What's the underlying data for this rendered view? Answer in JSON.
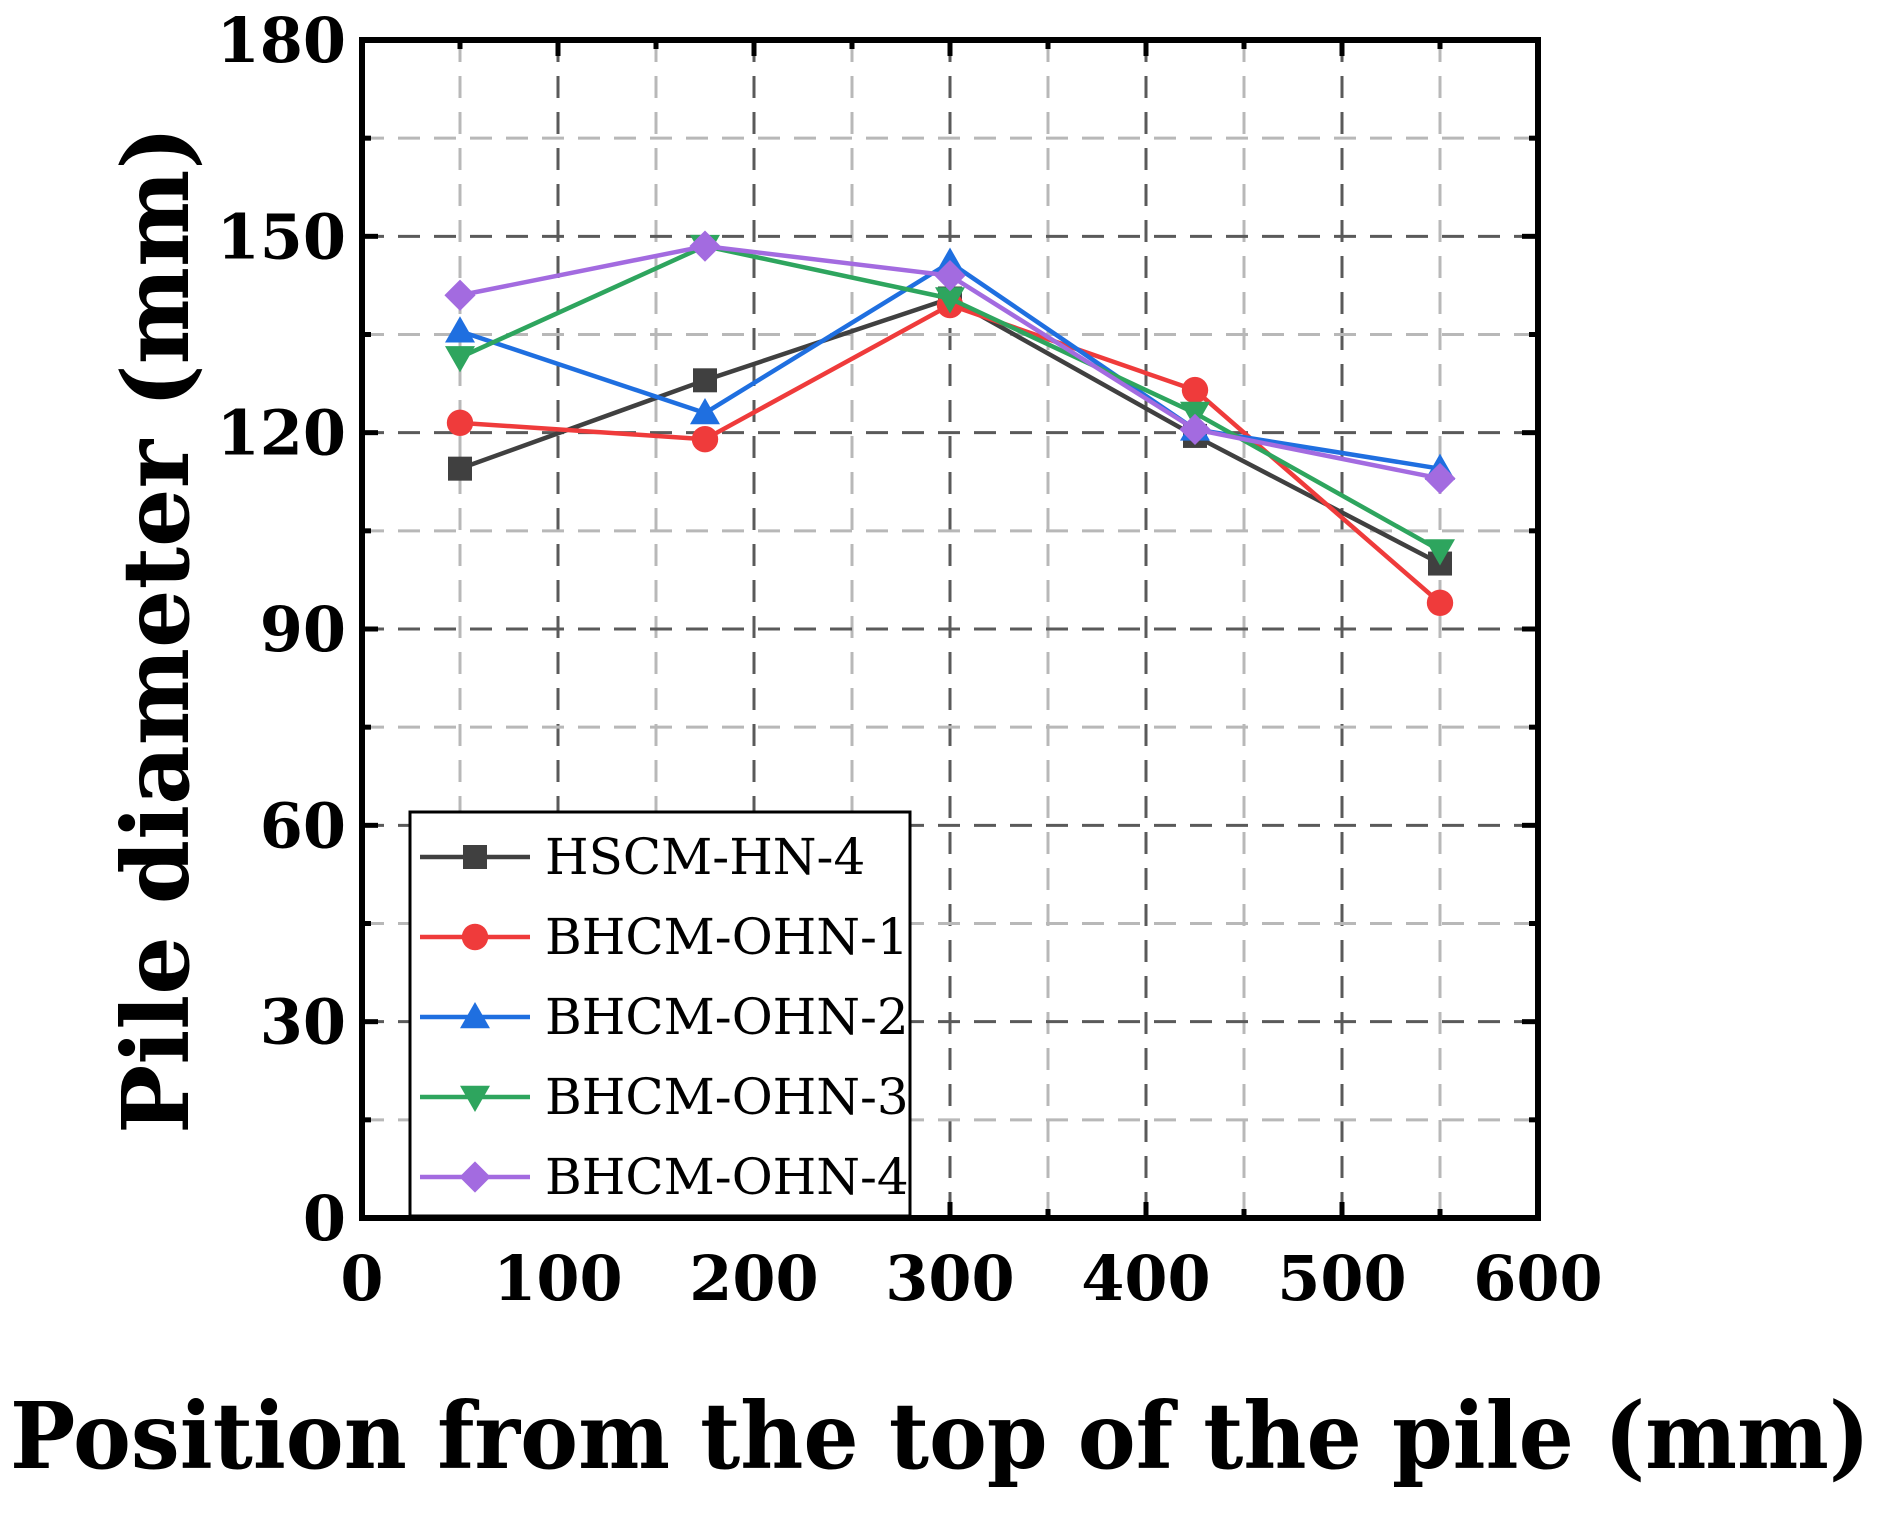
{
  "chart_data": {
    "type": "line",
    "title": "",
    "xlabel": "Position from the top of the pile (mm)",
    "ylabel": "Pile diameter (mm)",
    "xlim": [
      0,
      600
    ],
    "ylim": [
      0,
      180
    ],
    "xticks": [
      0,
      100,
      200,
      300,
      400,
      500,
      600
    ],
    "yticks": [
      0,
      30,
      60,
      90,
      120,
      150,
      180
    ],
    "x_minor_step": 50,
    "y_minor_step": 15,
    "grid": true,
    "legend_position": "bottom-left",
    "x": [
      50,
      175,
      300,
      425,
      550
    ],
    "series": [
      {
        "name": "HSCM-HN-4",
        "color": "#404040",
        "marker": "square",
        "values": [
          114.5,
          128,
          140.5,
          119.5,
          100
        ]
      },
      {
        "name": "BHCM-OHN-1",
        "color": "#ef3b3b",
        "marker": "circle",
        "values": [
          121.5,
          119,
          139.5,
          126.5,
          94
        ]
      },
      {
        "name": "BHCM-OHN-2",
        "color": "#1f6fe0",
        "marker": "triangle-up",
        "values": [
          135.5,
          123,
          146,
          120.5,
          114.5
        ]
      },
      {
        "name": "BHCM-OHN-3",
        "color": "#2ea55e",
        "marker": "triangle-down",
        "values": [
          131.5,
          148.5,
          140.5,
          123,
          102
        ]
      },
      {
        "name": "BHCM-OHN-4",
        "color": "#a36be0",
        "marker": "diamond",
        "values": [
          141,
          148.5,
          144,
          120.5,
          113
        ]
      }
    ]
  }
}
